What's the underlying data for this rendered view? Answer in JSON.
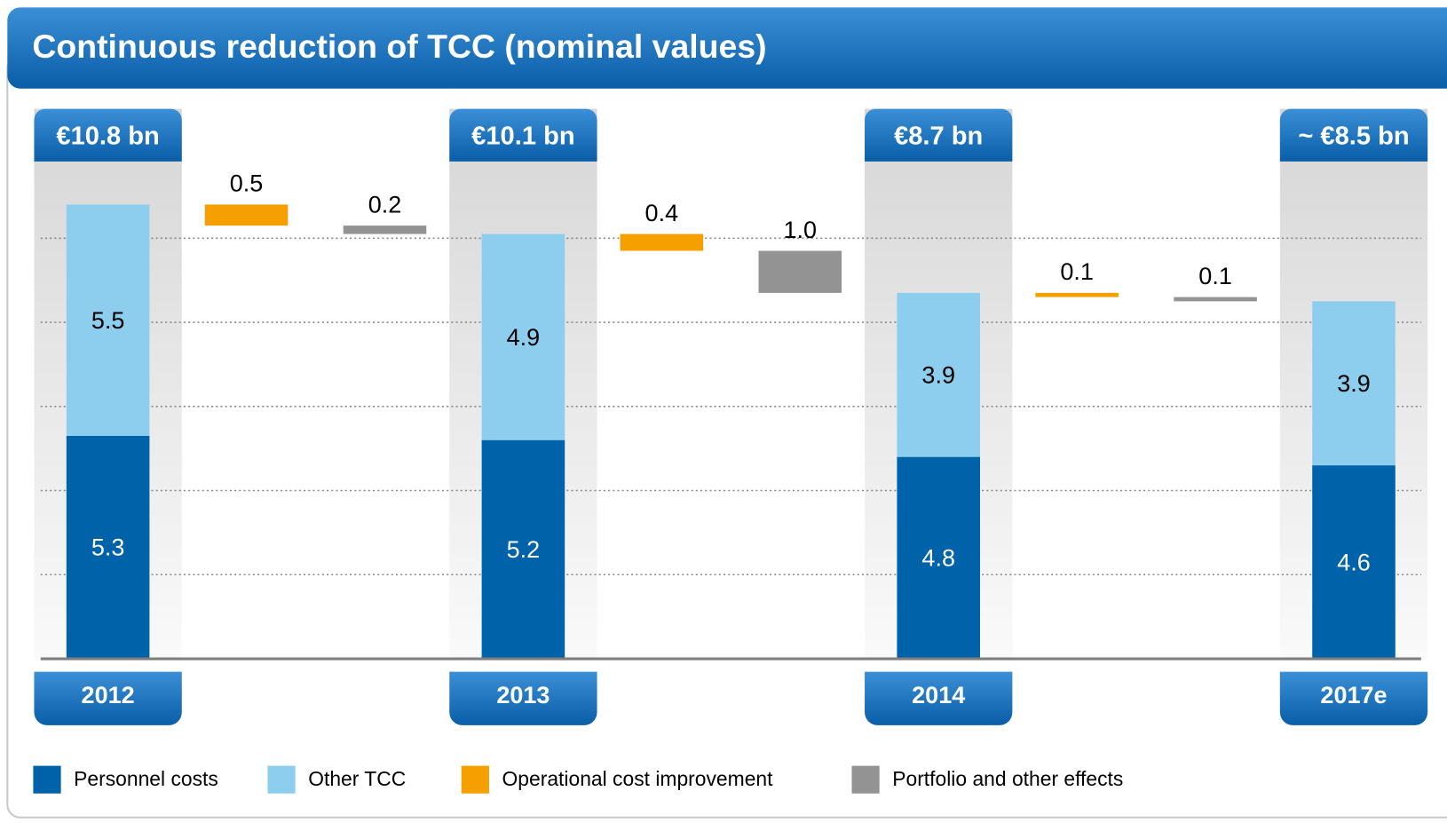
{
  "chart_data": {
    "type": "waterfall",
    "title": "Continuous reduction of TCC (nominal values)",
    "categories": [
      "2012",
      "2013",
      "2014",
      "2017e"
    ],
    "totals": {
      "values": [
        10.8,
        10.1,
        8.7,
        8.5
      ],
      "value_labels": [
        "€10.8 bn",
        "€10.1 bn",
        "€8.7 bn",
        "~ €8.5 bn"
      ]
    },
    "series": [
      {
        "name": "Personnel costs",
        "color": "#0062a9",
        "values": [
          5.3,
          5.2,
          4.8,
          4.6
        ]
      },
      {
        "name": "Other TCC",
        "color": "#8dcdee",
        "values": [
          5.5,
          4.9,
          3.9,
          3.9
        ]
      }
    ],
    "steps": [
      {
        "name": "Operational cost improvement",
        "color": "#f5a000",
        "values": [
          0.5,
          0.4,
          0.1
        ]
      },
      {
        "name": "Portfolio and other effects",
        "color": "#939393",
        "values": [
          0.2,
          1.0,
          0.1
        ],
        "value_labels": [
          "0.2",
          "1.0",
          "0.1"
        ]
      }
    ],
    "ylim": [
      0,
      12
    ],
    "yticks": [
      2,
      4,
      6,
      8,
      10
    ],
    "grid": true
  }
}
